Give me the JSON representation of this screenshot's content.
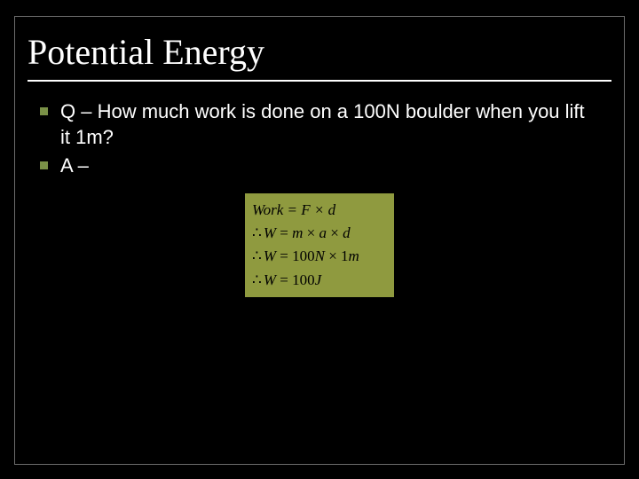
{
  "slide": {
    "title": "Potential Energy",
    "title_fontsize": 40,
    "title_color": "#ffffff",
    "underline_color": "#ffffff",
    "background_color": "#000000",
    "frame_border_color": "#6b6b6b",
    "bullets": [
      {
        "text": "Q – How much work is done on a 100N boulder when you lift it 1m?"
      },
      {
        "text": "A –"
      }
    ],
    "bullet_marker_color": "#7a9147",
    "bullet_text_color": "#ffffff",
    "bullet_fontsize": 22
  },
  "formula": {
    "background_color": "#8f9a3f",
    "text_color": "#000000",
    "fontsize": 17,
    "lines": {
      "l1_work": "Work",
      "l1_eq": " = ",
      "l1_f": "F",
      "l1_times": " × ",
      "l1_d": "d",
      "l2_therefore": "∴",
      "l2_w": "W",
      "l2_eq": " = ",
      "l2_m": "m",
      "l2_times1": " × ",
      "l2_a": "a",
      "l2_times2": " × ",
      "l2_d": "d",
      "l3_therefore": "∴",
      "l3_w": "W",
      "l3_eq": " = 100",
      "l3_n": "N",
      "l3_times": " × 1",
      "l3_m": "m",
      "l4_therefore": "∴",
      "l4_w": "W",
      "l4_rest": " = 100",
      "l4_j": "J"
    }
  }
}
